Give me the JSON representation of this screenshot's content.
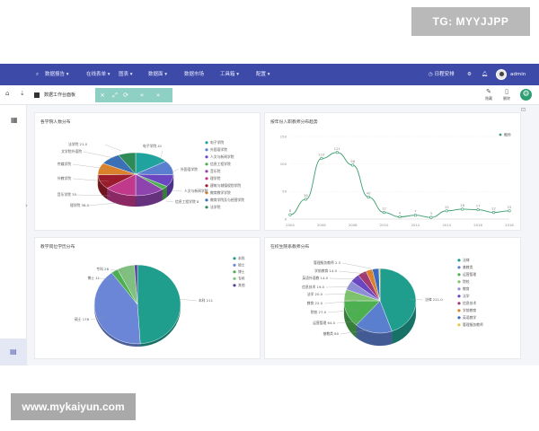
{
  "watermark_top": "TG: MYYJJPP",
  "watermark_bottom": "www.mykaiyun.com",
  "nav": {
    "items": [
      "数据报告 ▾",
      "在线表单 ▾",
      "图表 ▾",
      "数据面 ▾",
      "数据市场",
      "工具箱 ▾",
      "配置 ▾"
    ],
    "right": {
      "schedule": "日程安排",
      "user": "admin"
    }
  },
  "tabs": {
    "active": "数据工作台面板",
    "right_tools": [
      "隐藏",
      "删除"
    ]
  },
  "colors": {
    "nav": "#3d4aa8",
    "teal": "#2a9d8f",
    "line": "#3a9e6e"
  },
  "panels": {
    "p1_title": "各学院人数分布",
    "p2_title": "按年份入职教师分布趋势",
    "p3_title": "教学岗位学历分布",
    "p4_title": "在校生院系教师分布"
  },
  "chart_data": [
    {
      "type": "pie",
      "title": "各学院人数分布",
      "slices": [
        {
          "name": "电子学院",
          "value": 41,
          "color": "#20a39e"
        },
        {
          "name": "外国语学院",
          "value": 30,
          "color": "#5b7fcf"
        },
        {
          "name": "人文与新闻学院",
          "value": 25,
          "color": "#6b46c1"
        },
        {
          "name": "信息工程学院",
          "value": 8,
          "color": "#4caf50"
        },
        {
          "name": "音乐院",
          "value": 35,
          "color": "#8e44ad"
        },
        {
          "name": "理学院",
          "value": 38,
          "color": "#c0398b"
        },
        {
          "name": "建筑与城镇规划学院",
          "value": 30,
          "color": "#9b1c2c"
        },
        {
          "name": "教育教学学院",
          "value": 25,
          "color": "#d9822b"
        },
        {
          "name": "教育学院及与经营学院",
          "value": 25,
          "color": "#3b6fb6"
        },
        {
          "name": "法学院",
          "value": 21,
          "color": "#2e8b57"
        }
      ],
      "legend": [
        "电子学院",
        "外国语学院",
        "人文与新闻学院",
        "信息工程学院",
        "音乐院",
        "理学院",
        "建筑与城镇规划学院",
        "教育教学学院",
        "教育学院及与经营学院",
        "法学院"
      ],
      "labels": [
        {
          "text": "电子学院 41"
        },
        {
          "text": "外国语学院"
        },
        {
          "text": "法学院 21.0"
        },
        {
          "text": "文学院外语院"
        },
        {
          "text": "传媒学院"
        },
        {
          "text": "外教学院"
        },
        {
          "text": "音乐学院 35"
        },
        {
          "text": "理学院 38.0"
        },
        {
          "text": "人文与新闻学院"
        },
        {
          "text": "信息工程学院 8"
        }
      ]
    },
    {
      "type": "line",
      "title": "按年份入职教师分布趋势",
      "x": [
        2004,
        2005,
        2006,
        2007,
        2008,
        2009,
        2010,
        2011,
        2012,
        2013,
        2014,
        2015,
        2016,
        2017,
        2018
      ],
      "y": [
        8,
        36,
        110,
        121,
        98,
        40,
        12,
        4,
        7,
        3,
        15,
        18,
        17,
        12,
        15
      ],
      "xticks": [
        "2004",
        "2006",
        "2008",
        "2010",
        "2012",
        "2014",
        "2016",
        "2018"
      ],
      "ylim": [
        0,
        150
      ],
      "yticks": [
        "150",
        "100",
        "50",
        "0"
      ],
      "legend": "教师",
      "grid": true
    },
    {
      "type": "pie",
      "title": "教学岗位学历分布",
      "slices": [
        {
          "name": "本科",
          "value": 211,
          "color": "#1f9e8e"
        },
        {
          "name": "硕士",
          "value": 176,
          "color": "#6b86d6"
        },
        {
          "name": "博士",
          "value": 11,
          "color": "#4caf50"
        },
        {
          "name": "专科",
          "value": 28,
          "color": "#7fbf7f"
        },
        {
          "name": "其他",
          "value": 5,
          "color": "#5a3e9c"
        }
      ],
      "legend": [
        "本科",
        "硕士",
        "博士",
        "专科",
        "其他"
      ],
      "labels": [
        {
          "text": "本科 211"
        },
        {
          "text": "硕士 176"
        },
        {
          "text": "博士 11"
        },
        {
          "text": "专科 28"
        }
      ]
    },
    {
      "type": "pie",
      "title": "在校生院系教师分布",
      "slices": [
        {
          "name": "法律",
          "value": 211.0,
          "color": "#1f9e8e"
        },
        {
          "name": "基教类",
          "value": 80,
          "color": "#5b7fcf"
        },
        {
          "name": "运营管理",
          "value": 64,
          "color": "#4caf50"
        },
        {
          "name": "院校",
          "value": 27,
          "color": "#7cc36b"
        },
        {
          "name": "教育",
          "value": 22,
          "color": "#8e8ed6"
        },
        {
          "name": "法学",
          "value": 20,
          "color": "#6b46c1"
        },
        {
          "name": "信息技术",
          "value": 19,
          "color": "#a23b72"
        },
        {
          "name": "学前教育",
          "value": 14,
          "color": "#d9822b"
        },
        {
          "name": "英语教学",
          "value": 14,
          "color": "#3a6bc1"
        },
        {
          "name": "管理服务教师",
          "value": 2.3,
          "color": "#e8c64a"
        }
      ],
      "legend": [
        "法律",
        "基教类",
        "运营管理",
        "院校",
        "教育",
        "法学",
        "信息技术",
        "学前教育",
        "英语教学",
        "管理服务教师"
      ],
      "labels": [
        {
          "text": "管理服务教师 2.3"
        },
        {
          "text": "学前教育 14.0"
        },
        {
          "text": "英语外语教 14.0"
        },
        {
          "text": "信息技术 19.0"
        },
        {
          "text": "法学 20.0"
        },
        {
          "text": "教育 22.0"
        },
        {
          "text": "院校 27.0"
        },
        {
          "text": "运营管理 64.0"
        },
        {
          "text": "基教类 80"
        },
        {
          "text": "法律 211.0"
        }
      ]
    }
  ]
}
